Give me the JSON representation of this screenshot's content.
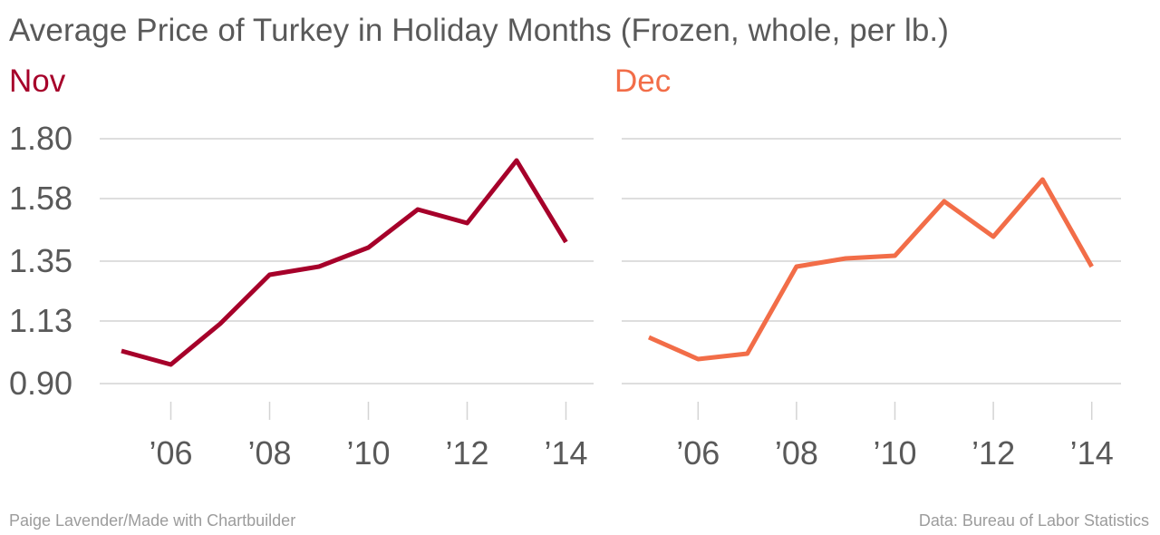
{
  "title": "Average Price of Turkey in Holiday Months (Frozen, whole, per lb.)",
  "footer": {
    "credit": "Paige Lavender/Made with Chartbuilder",
    "source": "Data: Bureau of Labor Statistics"
  },
  "colors": {
    "nov": "#a6002a",
    "dec": "#f26d48",
    "grid": "#d4d4d4",
    "text": "#595959"
  },
  "chart_data": [
    {
      "type": "line",
      "title": "Nov",
      "x": [
        2005,
        2006,
        2007,
        2008,
        2009,
        2010,
        2011,
        2012,
        2013,
        2014
      ],
      "values": [
        1.02,
        0.97,
        1.12,
        1.3,
        1.33,
        1.4,
        1.54,
        1.49,
        1.72,
        1.42
      ],
      "ylim": [
        0.9,
        1.8
      ],
      "yticks": [
        "0.90",
        "1.13",
        "1.35",
        "1.58",
        "1.80"
      ],
      "xticks": [
        2006,
        2008,
        2010,
        2012,
        2014
      ],
      "xtick_labels": [
        "’06",
        "’08",
        "’10",
        "’12",
        "’14"
      ],
      "grid": true,
      "color": "#a6002a"
    },
    {
      "type": "line",
      "title": "Dec",
      "x": [
        2005,
        2006,
        2007,
        2008,
        2009,
        2010,
        2011,
        2012,
        2013,
        2014
      ],
      "values": [
        1.07,
        0.99,
        1.01,
        1.33,
        1.36,
        1.37,
        1.57,
        1.44,
        1.65,
        1.33
      ],
      "ylim": [
        0.9,
        1.8
      ],
      "yticks": [
        "0.90",
        "1.13",
        "1.35",
        "1.58",
        "1.80"
      ],
      "xticks": [
        2006,
        2008,
        2010,
        2012,
        2014
      ],
      "xtick_labels": [
        "’06",
        "’08",
        "’10",
        "’12",
        "’14"
      ],
      "grid": true,
      "color": "#f26d48"
    }
  ]
}
